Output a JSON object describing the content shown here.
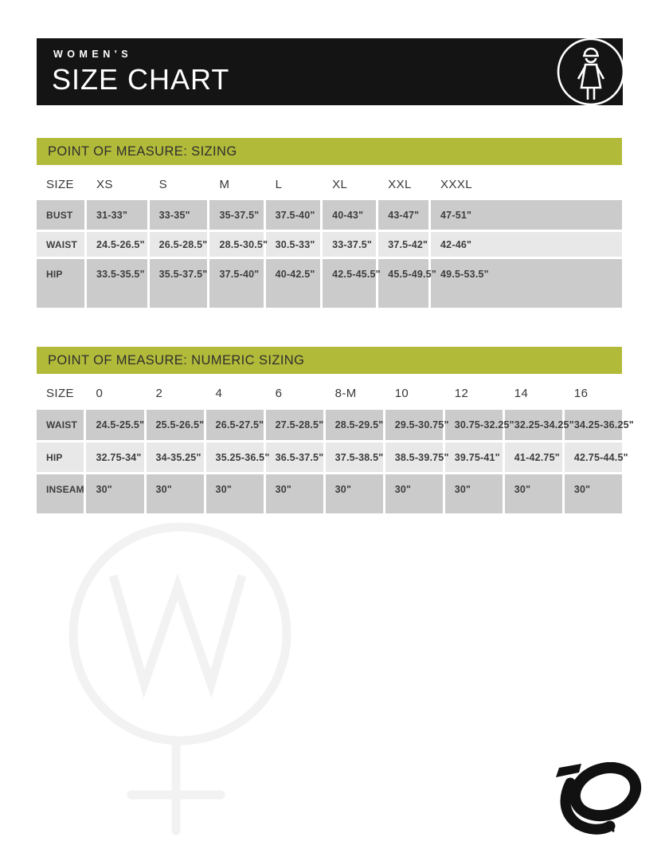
{
  "header": {
    "eyebrow": "WOMEN'S",
    "title": "SIZE CHART"
  },
  "colors": {
    "accent_green": "#b2bb39",
    "banner_black": "#141414",
    "row_dark": "#cbcbcb",
    "row_light": "#e8e8e8",
    "cell_text": "#3d3d3d",
    "watermark_gray": "#f2f2f2"
  },
  "icons": {
    "woman_figure": "woman-cyclist-in-circle-icon",
    "watermark": "female-symbol-with-W",
    "brand": "pearl-izumi-p-logo"
  },
  "sizing_table": {
    "section_title": "POINT OF MEASURE: SIZING",
    "columns": [
      "SIZE",
      "XS",
      "S",
      "M",
      "L",
      "XL",
      "XXL",
      "XXXL"
    ],
    "rows": [
      {
        "label": "BUST",
        "values": [
          "31-33\"",
          "33-35\"",
          "35-37.5\"",
          "37.5-40\"",
          "40-43\"",
          "43-47\"",
          "47-51\""
        ]
      },
      {
        "label": "WAIST",
        "values": [
          "24.5-26.5\"",
          "26.5-28.5\"",
          "28.5-30.5\"",
          "30.5-33\"",
          "33-37.5\"",
          "37.5-42\"",
          "42-46\""
        ]
      },
      {
        "label": "HIP",
        "values": [
          "33.5-35.5\"",
          "35.5-37.5\"",
          "37.5-40\"",
          "40-42.5\"",
          "42.5-45.5\"",
          "45.5-49.5\"",
          "49.5-53.5\""
        ]
      }
    ]
  },
  "numeric_table": {
    "section_title": "POINT OF MEASURE: NUMERIC SIZING",
    "columns": [
      "SIZE",
      "0",
      "2",
      "4",
      "6",
      "8-M",
      "10",
      "12",
      "14",
      "16"
    ],
    "rows": [
      {
        "label": "WAIST",
        "values": [
          "24.5-25.5\"",
          "25.5-26.5\"",
          "26.5-27.5\"",
          "27.5-28.5\"",
          "28.5-29.5\"",
          "29.5-30.75\"",
          "30.75-32.25\"",
          "32.25-34.25\"",
          "34.25-36.25\""
        ]
      },
      {
        "label": "HIP",
        "values": [
          "32.75-34\"",
          "34-35.25\"",
          "35.25-36.5\"",
          "36.5-37.5\"",
          "37.5-38.5\"",
          "38.5-39.75\"",
          "39.75-41\"",
          "41-42.75\"",
          "42.75-44.5\""
        ]
      },
      {
        "label": "INSEAM",
        "values": [
          "30\"",
          "30\"",
          "30\"",
          "30\"",
          "30\"",
          "30\"",
          "30\"",
          "30\"",
          "30\""
        ]
      }
    ]
  },
  "watermark": {
    "letter": "W"
  }
}
